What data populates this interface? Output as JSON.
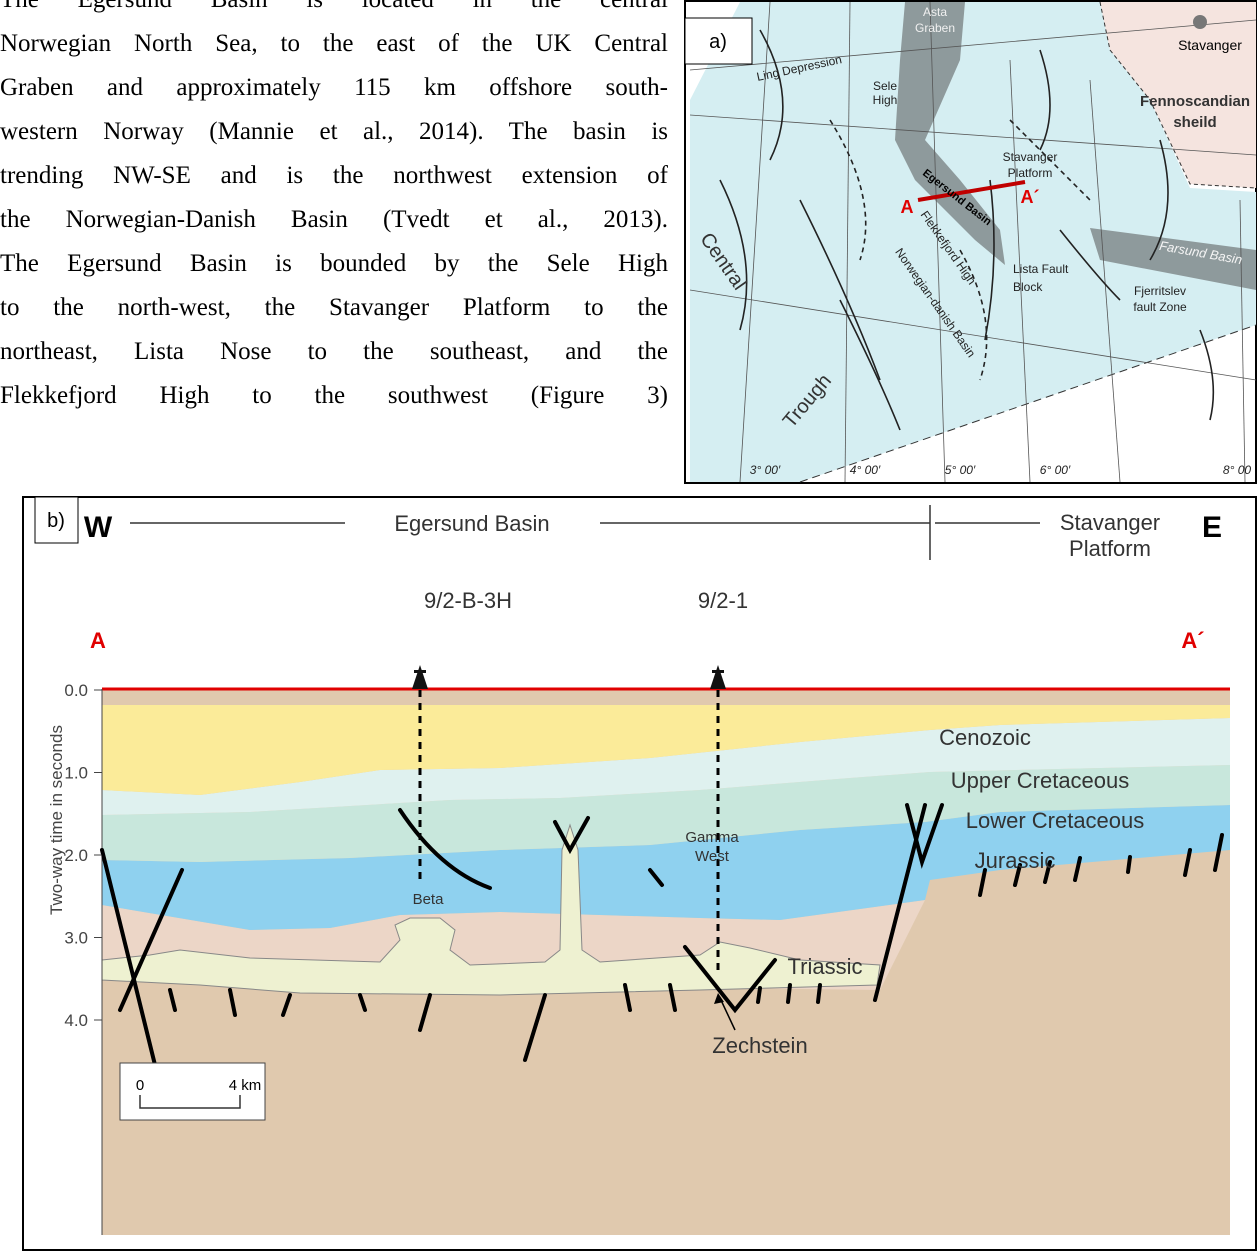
{
  "paragraph": {
    "lines": [
      "The Egersund Basin is located in the central",
      "Norwegian North Sea, to the east of the UK Central",
      "Graben and approximately 115 km offshore south-",
      "western Norway (Mannie et al., 2014). The basin is",
      "trending NW-SE and is the northwest extension of",
      "the Norwegian-Danish Basin (Tvedt et al., 2013).",
      "The Egersund Basin is bounded by the Sele High",
      "to the north-west, the Stavanger Platform to the",
      "northeast, Lista Nose to the southeast, and the",
      "Flekkefjord High to the southwest (Figure 3)"
    ]
  },
  "figure_a": {
    "panel_label": "a)",
    "asta_graben": [
      "Asta",
      "Graben"
    ],
    "ling_depression": "Ling Depression",
    "sele_high": [
      "Sele",
      "High"
    ],
    "stavanger": "Stavanger",
    "fennoscandian_shield": [
      "Fennoscandian",
      "sheild"
    ],
    "stavanger_platform": [
      "Stavanger",
      "Platform"
    ],
    "egersund_basin": "Egersund Basin",
    "point_a": "A",
    "point_a_prime": "A´",
    "flekkefjord_high": "Flekkefjord High",
    "central": "Central",
    "norwegian_danish_basin": "Norwegian-danish Basin",
    "lista_fault_block": [
      "Lista Fault",
      "Block"
    ],
    "farsund_basin": "Farsund Basin",
    "fjerritslev_fault_zone": [
      "Fjerritslev",
      "fault Zone"
    ],
    "trough": "Trough",
    "longitudes": [
      "3° 00′",
      "4° 00′",
      "5° 00′",
      "6° 00′",
      "8° 00"
    ]
  },
  "figure_b": {
    "panel_label": "b)",
    "west": "W",
    "east": "E",
    "egersund_basin": "Egersund Basin",
    "stavanger_platform": [
      "Stavanger",
      "Platform"
    ],
    "wells": [
      "9/2-B-3H",
      "9/2-1"
    ],
    "point_a": "A",
    "point_a_prime": "A´",
    "y_axis_label": "Two-way time in seconds",
    "yticks": [
      {
        "value": 0,
        "label": "0.0"
      },
      {
        "value": 1,
        "label": "1.0"
      },
      {
        "value": 2,
        "label": "2.0"
      },
      {
        "value": 3,
        "label": "3.0"
      },
      {
        "value": 4,
        "label": "4.0"
      }
    ],
    "layers": {
      "cenozoic": "Cenozoic",
      "upper_cretaceous": "Upper Cretaceous",
      "lower_cretaceous": "Lower Cretaceous",
      "jurassic": "Jurassic",
      "triassic": "Triassic",
      "zechstein": "Zechstein"
    },
    "gamma_west": [
      "Gamma",
      "West"
    ],
    "beta": "Beta",
    "scale": {
      "start": "0",
      "end": "4 km"
    }
  }
}
